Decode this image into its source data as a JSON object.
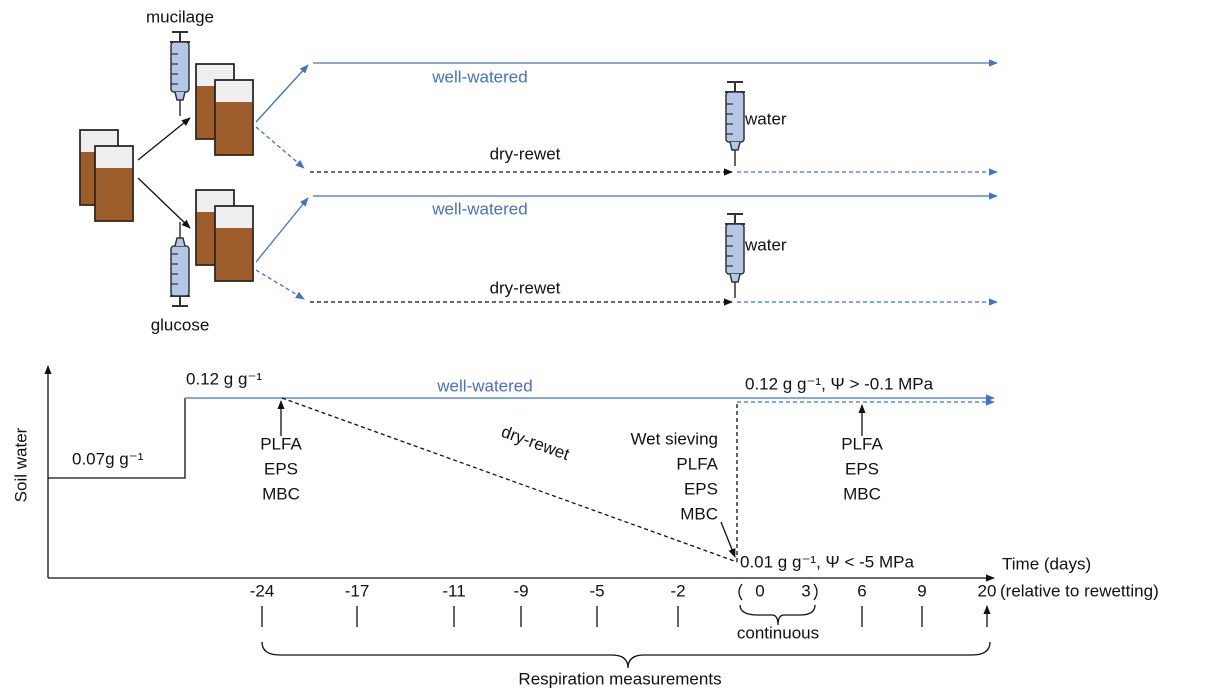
{
  "top": {
    "mucilage": "mucilage",
    "glucose": "glucose",
    "branches": [
      {
        "well_watered": "well-watered",
        "dry_rewet": "dry-rewet",
        "water": "water"
      },
      {
        "well_watered": "well-watered",
        "dry_rewet": "dry-rewet",
        "water": "water"
      }
    ]
  },
  "timeline": {
    "y_axis": "Soil water",
    "x_axis": [
      "Time (days)",
      "(relative to rewetting)"
    ],
    "wet_level": "0.12 g g⁻¹",
    "initial_level": "0.07g g⁻¹",
    "well_watered": "well-watered",
    "dry_rewet": "dry-rewet",
    "rewet_level": "0.12 g g⁻¹, Ψ > -0.1 MPa",
    "dry_level": "0.01 g g⁻¹, Ψ < -5 MPa",
    "sampling_1": [
      "PLFA",
      "EPS",
      "MBC"
    ],
    "sampling_2": [
      "Wet sieving",
      "PLFA",
      "EPS",
      "MBC"
    ],
    "sampling_3": [
      "PLFA",
      "EPS",
      "MBC"
    ],
    "days": [
      "-24",
      "-17",
      "-11",
      "-9",
      "-5",
      "-2",
      "0",
      "3",
      "6",
      "9",
      "20"
    ],
    "continuous": "continuous",
    "respiration": "Respiration measurements"
  }
}
